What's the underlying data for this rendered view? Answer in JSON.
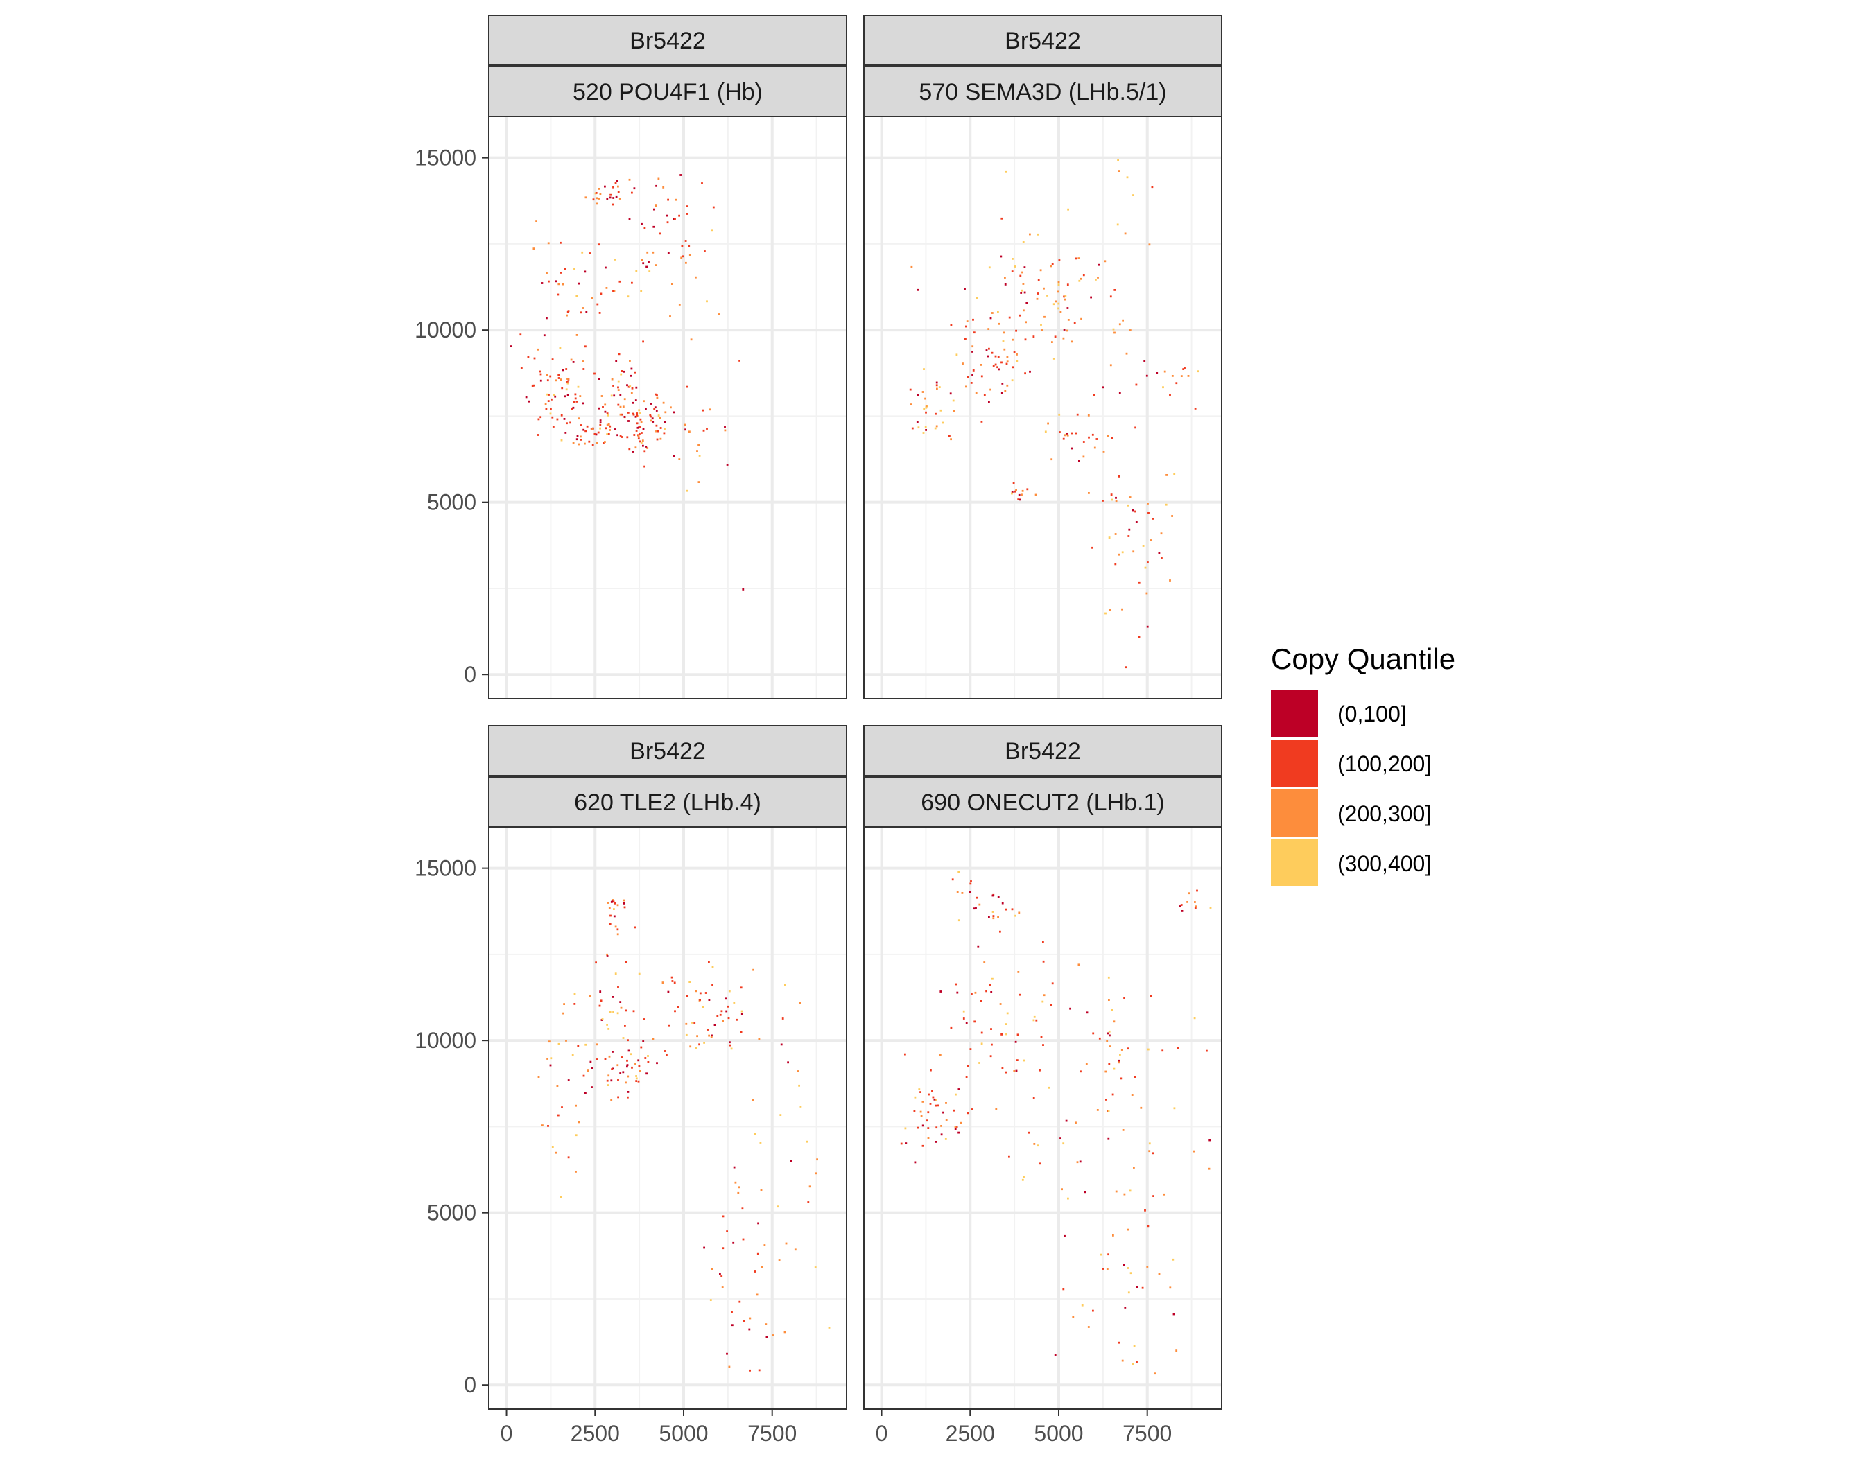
{
  "chart_data": {
    "type": "scatter",
    "facet_rows": [
      "Br5422"
    ],
    "x_range": [
      -500,
      9600
    ],
    "y_range": [
      -700,
      16200
    ],
    "x_ticks": [
      0,
      2500,
      5000,
      7500
    ],
    "x_tick_labels": [
      "0",
      "2500",
      "5000",
      "7500"
    ],
    "y_ticks": [
      0,
      5000,
      10000,
      15000
    ],
    "y_tick_labels": [
      "0",
      "5000",
      "10000",
      "15000"
    ],
    "grid": true,
    "legend": {
      "title": "Copy Quantile",
      "placement": "right",
      "items": [
        {
          "label": "(0,100]",
          "color": "#bd0026"
        },
        {
          "label": "(100,200]",
          "color": "#f03b20"
        },
        {
          "label": "(200,300]",
          "color": "#fd8d3c"
        },
        {
          "label": "(300,400]",
          "color": "#fecc5c"
        }
      ]
    },
    "panels": [
      {
        "sample": "Br5422",
        "gene": "520 POU4F1 (Hb)",
        "clusters": [
          {
            "x": 3300,
            "y": 7200,
            "sx": 1100,
            "sy": 450,
            "n": 140,
            "q": [
              0.25,
              0.4,
              0.25,
              0.1
            ]
          },
          {
            "x": 1500,
            "y": 8300,
            "sx": 450,
            "sy": 600,
            "n": 55,
            "q": [
              0.2,
              0.45,
              0.25,
              0.1
            ]
          },
          {
            "x": 3300,
            "y": 8500,
            "sx": 400,
            "sy": 400,
            "n": 30,
            "q": [
              0.2,
              0.45,
              0.25,
              0.1
            ]
          },
          {
            "x": 2900,
            "y": 13900,
            "sx": 350,
            "sy": 250,
            "n": 25,
            "q": [
              0.25,
              0.35,
              0.3,
              0.1
            ]
          },
          {
            "x": 4500,
            "y": 12800,
            "sx": 700,
            "sy": 800,
            "n": 40,
            "q": [
              0.3,
              0.35,
              0.25,
              0.1
            ]
          },
          {
            "x": 1600,
            "y": 11200,
            "sx": 500,
            "sy": 800,
            "n": 30,
            "q": [
              0.2,
              0.35,
              0.3,
              0.15
            ]
          },
          {
            "x": 3500,
            "y": 11000,
            "sx": 700,
            "sy": 600,
            "n": 20,
            "q": [
              0.2,
              0.35,
              0.3,
              0.15
            ]
          },
          {
            "x": 5500,
            "y": 6800,
            "sx": 900,
            "sy": 2800,
            "n": 12,
            "q": [
              0.1,
              0.3,
              0.35,
              0.25
            ]
          }
        ]
      },
      {
        "sample": "Br5422",
        "gene": "570 SEMA3D (LHb.5/1)",
        "clusters": [
          {
            "x": 4800,
            "y": 11000,
            "sx": 1200,
            "sy": 900,
            "n": 80,
            "q": [
              0.15,
              0.3,
              0.35,
              0.2
            ]
          },
          {
            "x": 3000,
            "y": 9000,
            "sx": 700,
            "sy": 600,
            "n": 50,
            "q": [
              0.25,
              0.35,
              0.3,
              0.1
            ]
          },
          {
            "x": 1500,
            "y": 7700,
            "sx": 400,
            "sy": 500,
            "n": 30,
            "q": [
              0.15,
              0.3,
              0.35,
              0.2
            ]
          },
          {
            "x": 5600,
            "y": 6900,
            "sx": 500,
            "sy": 400,
            "n": 25,
            "q": [
              0.2,
              0.4,
              0.3,
              0.1
            ]
          },
          {
            "x": 7200,
            "y": 3500,
            "sx": 700,
            "sy": 1600,
            "n": 45,
            "q": [
              0.15,
              0.35,
              0.3,
              0.2
            ]
          },
          {
            "x": 3800,
            "y": 5200,
            "sx": 200,
            "sy": 150,
            "n": 12,
            "q": [
              0.2,
              0.4,
              0.3,
              0.1
            ]
          },
          {
            "x": 7800,
            "y": 8500,
            "sx": 900,
            "sy": 500,
            "n": 20,
            "q": [
              0.25,
              0.3,
              0.3,
              0.15
            ]
          },
          {
            "x": 5500,
            "y": 13000,
            "sx": 2500,
            "sy": 1200,
            "n": 20,
            "q": [
              0.1,
              0.25,
              0.35,
              0.3
            ]
          }
        ]
      },
      {
        "sample": "Br5422",
        "gene": "620 TLE2 (LHb.4)",
        "clusters": [
          {
            "x": 3300,
            "y": 9100,
            "sx": 500,
            "sy": 350,
            "n": 45,
            "q": [
              0.25,
              0.4,
              0.25,
              0.1
            ]
          },
          {
            "x": 3300,
            "y": 10800,
            "sx": 900,
            "sy": 700,
            "n": 40,
            "q": [
              0.15,
              0.35,
              0.3,
              0.2
            ]
          },
          {
            "x": 2900,
            "y": 13700,
            "sx": 350,
            "sy": 400,
            "n": 20,
            "q": [
              0.25,
              0.35,
              0.3,
              0.1
            ]
          },
          {
            "x": 6200,
            "y": 10300,
            "sx": 400,
            "sy": 500,
            "n": 30,
            "q": [
              0.2,
              0.35,
              0.3,
              0.15
            ]
          },
          {
            "x": 6800,
            "y": 3500,
            "sx": 600,
            "sy": 2000,
            "n": 45,
            "q": [
              0.2,
              0.35,
              0.3,
              0.15
            ]
          },
          {
            "x": 1500,
            "y": 8000,
            "sx": 500,
            "sy": 1200,
            "n": 25,
            "q": [
              0.1,
              0.3,
              0.35,
              0.25
            ]
          },
          {
            "x": 8500,
            "y": 8500,
            "sx": 600,
            "sy": 2500,
            "n": 20,
            "q": [
              0.1,
              0.25,
              0.35,
              0.3
            ]
          },
          {
            "x": 5200,
            "y": 11500,
            "sx": 700,
            "sy": 500,
            "n": 20,
            "q": [
              0.15,
              0.35,
              0.3,
              0.2
            ]
          }
        ]
      },
      {
        "sample": "Br5422",
        "gene": "690 ONECUT2 (LHb.1)",
        "clusters": [
          {
            "x": 1600,
            "y": 7800,
            "sx": 500,
            "sy": 500,
            "n": 45,
            "q": [
              0.25,
              0.4,
              0.25,
              0.1
            ]
          },
          {
            "x": 3500,
            "y": 10500,
            "sx": 1100,
            "sy": 1200,
            "n": 60,
            "q": [
              0.2,
              0.35,
              0.3,
              0.15
            ]
          },
          {
            "x": 3000,
            "y": 14000,
            "sx": 500,
            "sy": 400,
            "n": 25,
            "q": [
              0.25,
              0.35,
              0.3,
              0.1
            ]
          },
          {
            "x": 7000,
            "y": 3500,
            "sx": 900,
            "sy": 1800,
            "n": 45,
            "q": [
              0.15,
              0.35,
              0.3,
              0.2
            ]
          },
          {
            "x": 6500,
            "y": 10000,
            "sx": 400,
            "sy": 800,
            "n": 20,
            "q": [
              0.15,
              0.35,
              0.3,
              0.2
            ]
          },
          {
            "x": 8900,
            "y": 14000,
            "sx": 300,
            "sy": 300,
            "n": 12,
            "q": [
              0.15,
              0.35,
              0.3,
              0.2
            ]
          },
          {
            "x": 7000,
            "y": 8500,
            "sx": 1200,
            "sy": 1500,
            "n": 25,
            "q": [
              0.1,
              0.3,
              0.35,
              0.25
            ]
          },
          {
            "x": 5500,
            "y": 6500,
            "sx": 1500,
            "sy": 800,
            "n": 15,
            "q": [
              0.15,
              0.3,
              0.3,
              0.25
            ]
          }
        ]
      }
    ]
  }
}
